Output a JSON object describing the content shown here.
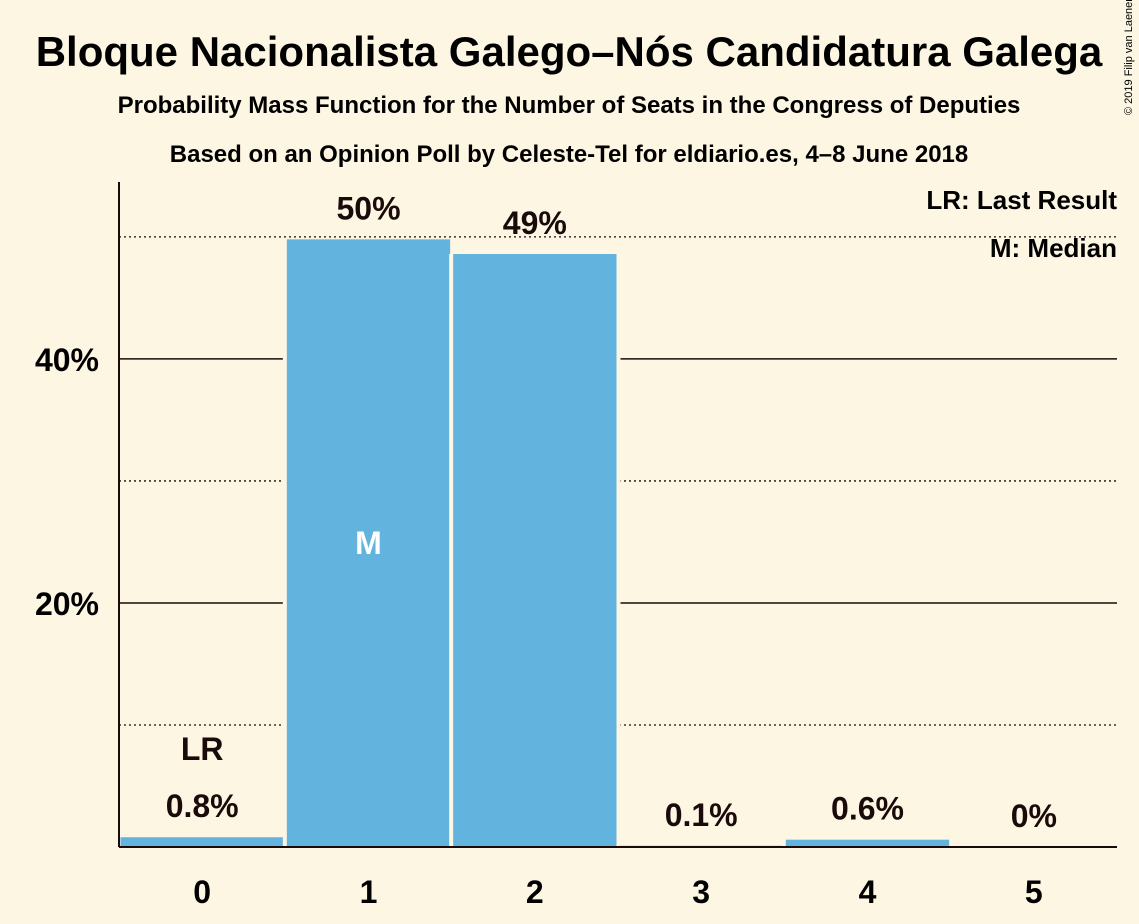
{
  "title": "Bloque Nacionalista Galego–Nós Candidatura Galega",
  "subtitle1": "Probability Mass Function for the Number of Seats in the Congress of Deputies",
  "subtitle2": "Based on an Opinion Poll by Celeste-Tel for eldiario.es, 4–8 June 2018",
  "copyright": "© 2019 Filip van Laenen",
  "legend": {
    "lr": "LR: Last Result",
    "m": "M: Median"
  },
  "colors": {
    "bar": "#62b3de",
    "background": "#fdf6e3",
    "text": "#1a0a0a"
  },
  "chart_data": {
    "type": "bar",
    "categories": [
      "0",
      "1",
      "2",
      "3",
      "4",
      "5"
    ],
    "values": [
      0.8,
      49.8,
      48.6,
      0.1,
      0.6,
      0
    ],
    "value_labels": [
      "0.8%",
      "50%",
      "49%",
      "0.1%",
      "0.6%",
      "0%"
    ],
    "ylim": [
      0,
      54.5
    ],
    "yticks": [
      20,
      40
    ],
    "ytick_labels": [
      "20%",
      "40%"
    ],
    "minor_gridlines": [
      10,
      30,
      50
    ],
    "last_result_category": "0",
    "last_result_label": "LR",
    "median_category": "1",
    "median_label": "M",
    "xlabel": "",
    "ylabel": ""
  }
}
